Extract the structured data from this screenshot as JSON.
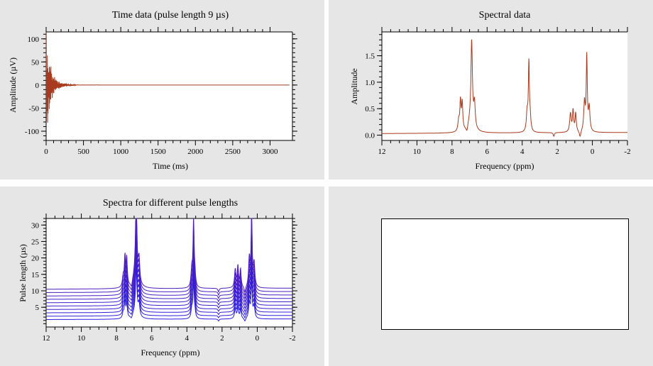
{
  "panels": {
    "time": {
      "title": "Time data (pulse length 9 µs)",
      "xlabel": "Time (ms)",
      "ylabel": "Amplitude (µV)"
    },
    "spectral": {
      "title": "Spectral data",
      "xlabel": "Frequency (ppm)",
      "ylabel": "Amplitude"
    },
    "pulses": {
      "title": "Spectra for different pulse lengths",
      "xlabel": "Frequency (ppm)",
      "ylabel": "Pulse length (µs)"
    },
    "empty": {}
  },
  "chart_data": [
    {
      "type": "line",
      "title": "Time data (pulse length 9 µs)",
      "xlabel": "Time (ms)",
      "ylabel": "Amplitude (µV)",
      "xlim": [
        0,
        3300
      ],
      "ylim": [
        -120,
        115
      ],
      "xticks": [
        0,
        500,
        1000,
        1500,
        2000,
        2500,
        3000
      ],
      "yticks": [
        -100,
        -50,
        0,
        50,
        100
      ],
      "series": [
        {
          "color": "#a83a1f",
          "signal": "decaying free-induction oscillation, ~±100 µV at t=0, near zero after ~300 ms"
        }
      ],
      "grid": false
    },
    {
      "type": "line",
      "title": "Spectral data",
      "xlabel": "Frequency (ppm)",
      "ylabel": "Amplitude",
      "xlim": [
        12,
        -2
      ],
      "ylim": [
        -0.1,
        1.95
      ],
      "xticks": [
        12,
        10,
        8,
        6,
        4,
        2,
        0,
        -2
      ],
      "yticks": [
        0.0,
        0.5,
        1.0,
        1.5
      ],
      "peaks": [
        {
          "ppm": 7.5,
          "amplitude": 0.85
        },
        {
          "ppm": 6.85,
          "amplitude": 1.75
        },
        {
          "ppm": 3.65,
          "amplitude": 1.35
        },
        {
          "ppm": 1.05,
          "amplitude": 0.58
        },
        {
          "ppm": 0.3,
          "amplitude": 1.55
        }
      ],
      "series": [
        {
          "color": "#a83a1f"
        }
      ],
      "grid": false
    },
    {
      "type": "line",
      "title": "Spectra for different pulse lengths",
      "xlabel": "Frequency (ppm)",
      "ylabel": "Pulse length (µs)",
      "xlim": [
        12,
        -2
      ],
      "ylim": [
        -1,
        32
      ],
      "xticks": [
        12,
        10,
        8,
        6,
        4,
        2,
        0,
        -2
      ],
      "yticks": [
        5,
        10,
        15,
        20,
        25,
        30
      ],
      "series": [
        {
          "offset": 0,
          "color": "#2b1fe0"
        },
        {
          "offset": 1,
          "color": "#2f1fdd"
        },
        {
          "offset": 2,
          "color": "#331fda"
        },
        {
          "offset": 3,
          "color": "#371fd6"
        },
        {
          "offset": 4,
          "color": "#3b1fd2"
        },
        {
          "offset": 5,
          "color": "#3f1fce"
        },
        {
          "offset": 6,
          "color": "#431fca"
        },
        {
          "offset": 7,
          "color": "#471fc6"
        },
        {
          "offset": 8,
          "color": "#4b1fc2"
        },
        {
          "offset": 9,
          "color": "#4f1fbe"
        }
      ],
      "peak_max": 30,
      "grid": false
    }
  ]
}
